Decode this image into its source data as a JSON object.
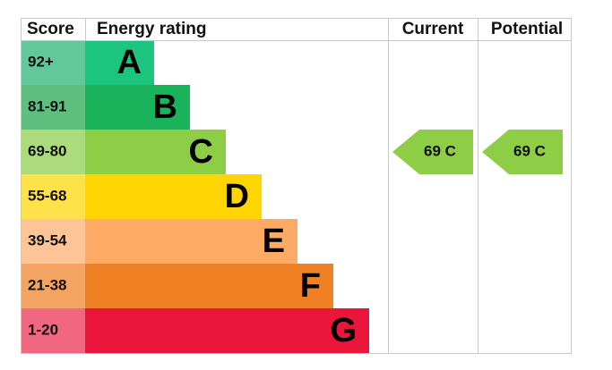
{
  "header": {
    "score": "Score",
    "energy_rating": "Energy rating",
    "current": "Current",
    "potential": "Potential"
  },
  "bands": [
    {
      "score": "92+",
      "letter": "A"
    },
    {
      "score": "81-91",
      "letter": "B"
    },
    {
      "score": "69-80",
      "letter": "C"
    },
    {
      "score": "55-68",
      "letter": "D"
    },
    {
      "score": "39-54",
      "letter": "E"
    },
    {
      "score": "21-38",
      "letter": "F"
    },
    {
      "score": "1-20",
      "letter": "G"
    }
  ],
  "current": {
    "label": "69 C"
  },
  "potential": {
    "label": "69 C"
  }
}
